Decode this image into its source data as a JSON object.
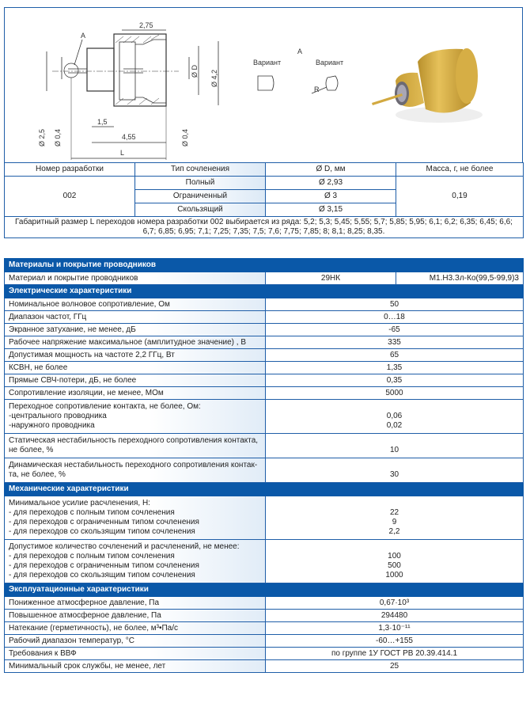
{
  "drawing": {
    "dims": {
      "d275": "2,75",
      "d42": "Ø 4,2",
      "dD": "Ø D",
      "d25": "Ø 2,5",
      "d04a": "Ø 0,4",
      "d04b": "Ø 0,4",
      "d15": "1,5",
      "d455": "4,55",
      "L": "L",
      "A": "A"
    },
    "detail": {
      "title": "A",
      "variant1": "Вариант",
      "variant2": "Вариант",
      "R": "R"
    }
  },
  "spec_table": {
    "headers": [
      "Номер разработки",
      "Тип сочленения",
      "Ø D, мм",
      "Масса, г, не более"
    ],
    "model": "002",
    "mass": "0,19",
    "rows": [
      {
        "type": "Полный",
        "d": "Ø 2,93"
      },
      {
        "type": "Ограниченный",
        "d": "Ø 3"
      },
      {
        "type": "Скользящий",
        "d": "Ø 3,15"
      }
    ],
    "note": "Габаритный размер L  переходов номера разработки 002 выбирается из ряда: 5,2; 5,3; 5,45; 5,55; 5,7; 5,85; 5,95; 6,1; 6,2; 6,35; 6,45; 6,6; 6,7; 6,85; 6,95; 7,1; 7,25; 7,35; 7,5; 7,6; 7,75; 7,85; 8; 8,1; 8,25; 8,35."
  },
  "colors": {
    "accent": "#0a58a8",
    "border": "#1f5ea8",
    "label_bg": "#e1ecf7"
  },
  "materials": {
    "title": "Материалы и покрытие проводников",
    "label": "Материал и покрытие проводников",
    "value1": "29НК",
    "value2": "М1.Н3.Зл-Ко(99,5-99,9)3"
  },
  "electrical": {
    "title": "Электрические характеристики",
    "rows": [
      {
        "label": "Номинальное волновое сопротивление, Ом",
        "value": "50"
      },
      {
        "label": "Диапазон частот, ГГц",
        "value": "0…18"
      },
      {
        "label": "Экранное затухание, не менее, дБ",
        "value": "-65"
      },
      {
        "label": "Рабочее напряжение максимальное (амплитудное значение) , В",
        "value": "335"
      },
      {
        "label": "Допустимая мощность на частоте 2,2 ГГц, Вт",
        "value": "65"
      },
      {
        "label": "КСВН, не более",
        "value": "1,35"
      },
      {
        "label": "Прямые СВЧ-потери, дБ, не более",
        "value": "0,35"
      },
      {
        "label": "Сопротивление изоляции, не менее, МОм",
        "value": "5000"
      }
    ],
    "contact": {
      "label": "Переходное сопротивление контакта, не более, Ом:",
      "sub": [
        "-центрального проводника",
        "-наружного проводника"
      ],
      "values": [
        "0,06",
        "0,02"
      ]
    },
    "static": {
      "label1": "Статическая нестабильность переходного сопротивления контакта,",
      "label2": "не более, %",
      "value": "10"
    },
    "dynamic": {
      "label1": "Динамическая нестабильность переходного сопротивления контак-",
      "label2": "та, не более, %",
      "value": "30"
    }
  },
  "mechanical": {
    "title": "Механические характеристики",
    "force": {
      "label": "Минимальное усилие расчленения, Н:",
      "sub": [
        "- для переходов с полным типом сочленения",
        "- для переходов с ограниченным типом сочленения",
        "- для переходов со скользящим типом сочленения"
      ],
      "values": [
        "22",
        "9",
        "2,2"
      ]
    },
    "cycles": {
      "label": "Допустимое количество сочленений и расчленений, не менее:",
      "sub": [
        "- для переходов с полным типом сочленения",
        "- для переходов с ограниченным типом сочленения",
        "- для переходов со скользящим типом сочленения"
      ],
      "values": [
        "100",
        "500",
        "1000"
      ]
    }
  },
  "operational": {
    "title": "Эксплуатационные характеристики",
    "rows": [
      {
        "label": "Пониженное атмосферное давление, Па",
        "value": "0,67·10³"
      },
      {
        "label": "Повышенное атмосферное давление, Па",
        "value": "294480"
      },
      {
        "label": "Натекание (герметичность), не более, м³•Па/с",
        "value": "1,3·10⁻¹¹"
      },
      {
        "label": "Рабочий диапазон температур, °С",
        "value": "-60…+155"
      },
      {
        "label": "Требования к ВВФ",
        "value": "по группе 1У ГОСТ РВ 20.39.414.1"
      },
      {
        "label": "Минимальный срок службы, не менее, лет",
        "value": "25"
      }
    ]
  }
}
